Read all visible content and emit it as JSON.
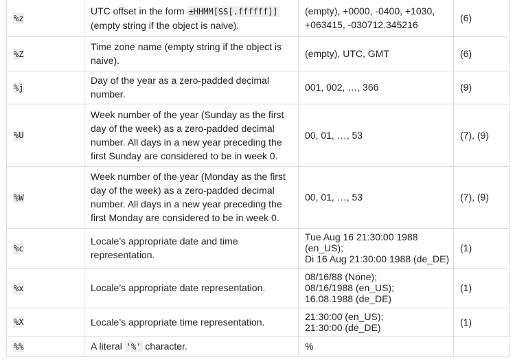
{
  "rows": [
    {
      "directive": "%z",
      "meaning_before": "UTC offset in the form ",
      "meaning_code": "±HHMM[SS[.ffffff]]",
      "meaning_after": " (empty string if the object is naive).",
      "example": "(empty), +0000, -0400, +1030, +063415, -030712.345216",
      "notes": "(6)"
    },
    {
      "directive": "%Z",
      "meaning": "Time zone name (empty string if the object is naive).",
      "example": "(empty), UTC, GMT",
      "notes": "(6)"
    },
    {
      "directive": "%j",
      "meaning": "Day of the year as a zero-padded decimal number.",
      "example": "001, 002, …, 366",
      "notes": "(9)"
    },
    {
      "directive": "%U",
      "meaning": "Week number of the year (Sunday as the first day of the week) as a zero-padded decimal number. All days in a new year preceding the first Sunday are considered to be in week 0.",
      "example": "00, 01, …, 53",
      "notes": "(7), (9)"
    },
    {
      "directive": "%W",
      "meaning": "Week number of the year (Monday as the first day of the week) as a zero-padded decimal number. All days in a new year preceding the first Monday are considered to be in week 0.",
      "example": "00, 01, …, 53",
      "notes": "(7), (9)"
    },
    {
      "directive": "%c",
      "meaning": "Locale’s appropriate date and time representation.",
      "example_lines": [
        "Tue Aug 16 21:30:00 1988 (en_US);",
        "Di 16 Aug 21:30:00 1988 (de_DE)"
      ],
      "notes": "(1)"
    },
    {
      "directive": "%x",
      "meaning": "Locale’s appropriate date representation.",
      "example_lines": [
        "08/16/88 (None);",
        "08/16/1988 (en_US);",
        "16.08.1988 (de_DE)"
      ],
      "notes": "(1)"
    },
    {
      "directive": "%X",
      "meaning": "Locale’s appropriate time representation.",
      "example_lines": [
        "21:30:00 (en_US);",
        "21:30:00 (de_DE)"
      ],
      "notes": "(1)"
    },
    {
      "directive": "%%",
      "meaning_before": "A literal ",
      "meaning_code": "'%'",
      "meaning_after": " character.",
      "example": "%",
      "notes": ""
    }
  ]
}
